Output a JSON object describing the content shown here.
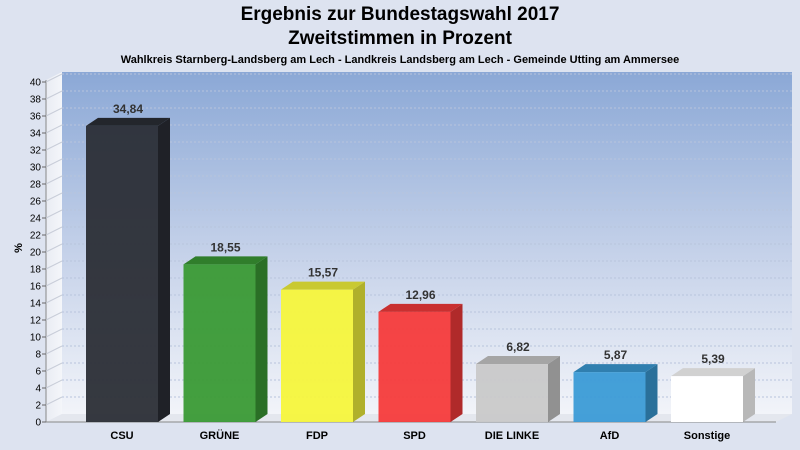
{
  "chart_data": {
    "type": "bar",
    "title": "Ergebnis zur Bundestagswahl 2017",
    "title_line2": "Zweitstimmen in Prozent",
    "subtitle": "Wahlkreis Starnberg-Landsberg am Lech - Landkreis Landsberg am Lech - Gemeinde Utting am Ammersee",
    "ylabel": "%",
    "xlabel": "",
    "ylim": [
      0,
      40
    ],
    "ytick_step": 2,
    "grid": true,
    "categories": [
      "CSU",
      "GRÜNE",
      "FDP",
      "SPD",
      "DIE LINKE",
      "AfD",
      "Sonstige"
    ],
    "values": [
      34.84,
      18.55,
      15.57,
      12.96,
      6.82,
      5.87,
      5.39
    ],
    "value_labels": [
      "34,84",
      "18,55",
      "15,57",
      "12,96",
      "6,82",
      "5,87",
      "5,39"
    ],
    "colors": [
      "#2b2e36",
      "#3a9a35",
      "#f5f53c",
      "#f53b3b",
      "#c9c9c9",
      "#3b9bd6",
      "#ffffff"
    ]
  }
}
